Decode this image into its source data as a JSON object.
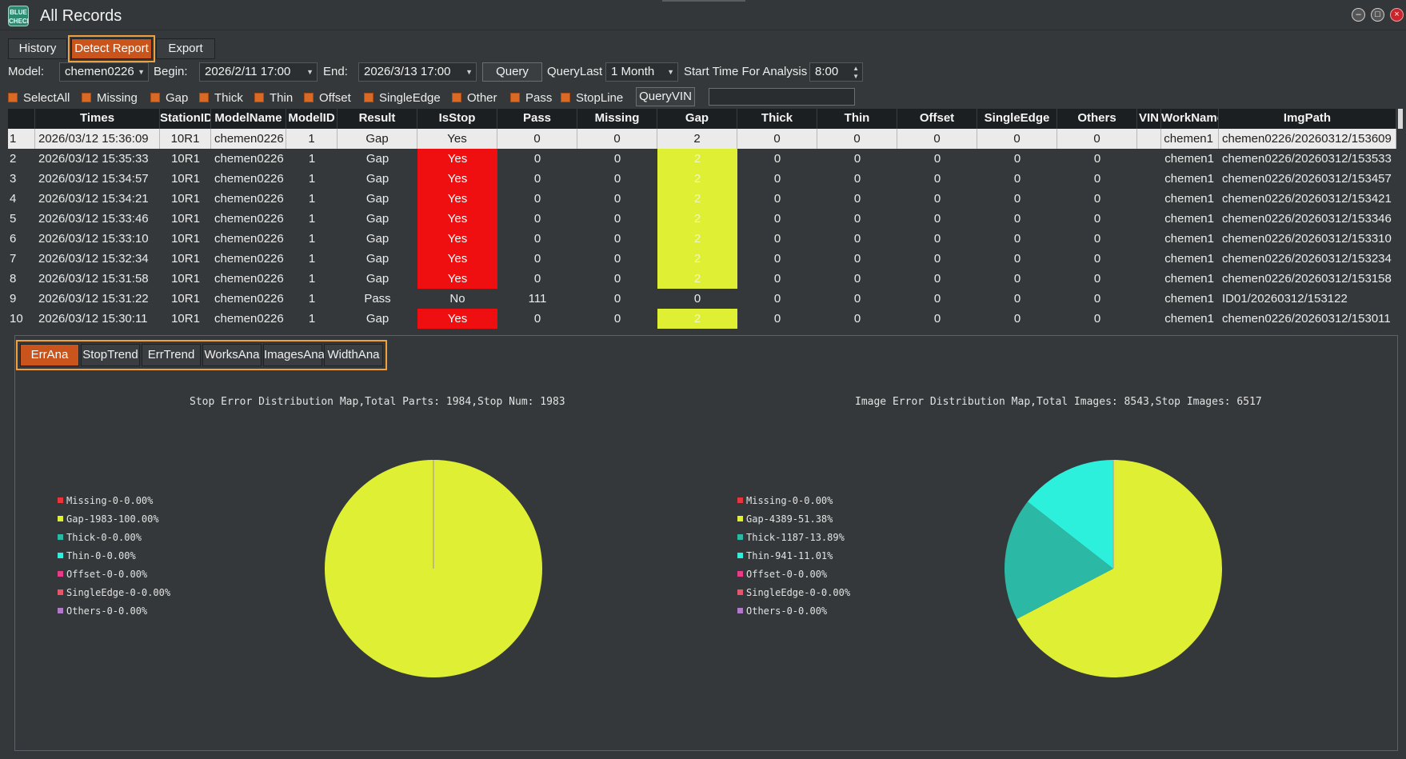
{
  "window": {
    "title": "All Records",
    "logo_text": "BLUE CHECK"
  },
  "main_tabs": [
    "History",
    "Detect Report",
    "Export"
  ],
  "filters": {
    "model_label": "Model:",
    "model_value": "chemen0226",
    "begin_label": "Begin:",
    "begin_value": "2026/2/11 17:00",
    "end_label": "End:",
    "end_value": "2026/3/13 17:00",
    "query_button": "Query",
    "query_last_label": "QueryLast",
    "query_last_value": "1 Month",
    "start_time_label": "Start Time For Analysis",
    "start_time_value": "8:00"
  },
  "checkboxes": [
    "SelectAll",
    "Missing",
    "Gap",
    "Thick",
    "Thin",
    "Offset",
    "SingleEdge",
    "Other",
    "Pass",
    "StopLine"
  ],
  "query_vin_button": "QueryVIN",
  "query_vin_value": "",
  "table": {
    "columns": [
      "",
      "Times",
      "StationID",
      "ModelName",
      "ModelID",
      "Result",
      "IsStop",
      "Pass",
      "Missing",
      "Gap",
      "Thick",
      "Thin",
      "Offset",
      "SingleEdge",
      "Others",
      "VIN",
      "WorkName",
      "ImgPath"
    ],
    "rows": [
      [
        "1",
        "2026/03/12 15:36:09",
        "10R1",
        "chemen0226",
        "1",
        "Gap",
        "Yes",
        "0",
        "0",
        "2",
        "0",
        "0",
        "0",
        "0",
        "0",
        "",
        "chemen1",
        "chemen0226/20260312/153609"
      ],
      [
        "2",
        "2026/03/12 15:35:33",
        "10R1",
        "chemen0226",
        "1",
        "Gap",
        "Yes",
        "0",
        "0",
        "2",
        "0",
        "0",
        "0",
        "0",
        "0",
        "",
        "chemen1",
        "chemen0226/20260312/153533"
      ],
      [
        "3",
        "2026/03/12 15:34:57",
        "10R1",
        "chemen0226",
        "1",
        "Gap",
        "Yes",
        "0",
        "0",
        "2",
        "0",
        "0",
        "0",
        "0",
        "0",
        "",
        "chemen1",
        "chemen0226/20260312/153457"
      ],
      [
        "4",
        "2026/03/12 15:34:21",
        "10R1",
        "chemen0226",
        "1",
        "Gap",
        "Yes",
        "0",
        "0",
        "2",
        "0",
        "0",
        "0",
        "0",
        "0",
        "",
        "chemen1",
        "chemen0226/20260312/153421"
      ],
      [
        "5",
        "2026/03/12 15:33:46",
        "10R1",
        "chemen0226",
        "1",
        "Gap",
        "Yes",
        "0",
        "0",
        "2",
        "0",
        "0",
        "0",
        "0",
        "0",
        "",
        "chemen1",
        "chemen0226/20260312/153346"
      ],
      [
        "6",
        "2026/03/12 15:33:10",
        "10R1",
        "chemen0226",
        "1",
        "Gap",
        "Yes",
        "0",
        "0",
        "2",
        "0",
        "0",
        "0",
        "0",
        "0",
        "",
        "chemen1",
        "chemen0226/20260312/153310"
      ],
      [
        "7",
        "2026/03/12 15:32:34",
        "10R1",
        "chemen0226",
        "1",
        "Gap",
        "Yes",
        "0",
        "0",
        "2",
        "0",
        "0",
        "0",
        "0",
        "0",
        "",
        "chemen1",
        "chemen0226/20260312/153234"
      ],
      [
        "8",
        "2026/03/12 15:31:58",
        "10R1",
        "chemen0226",
        "1",
        "Gap",
        "Yes",
        "0",
        "0",
        "2",
        "0",
        "0",
        "0",
        "0",
        "0",
        "",
        "chemen1",
        "chemen0226/20260312/153158"
      ],
      [
        "9",
        "2026/03/12 15:31:22",
        "10R1",
        "chemen0226",
        "1",
        "Pass",
        "No",
        "111",
        "0",
        "0",
        "0",
        "0",
        "0",
        "0",
        "0",
        "",
        "chemen1",
        "ID01/20260312/153122"
      ],
      [
        "10",
        "2026/03/12 15:30:11",
        "10R1",
        "chemen0226",
        "1",
        "Gap",
        "Yes",
        "0",
        "0",
        "2",
        "0",
        "0",
        "0",
        "0",
        "0",
        "",
        "chemen1",
        "chemen0226/20260312/153011"
      ]
    ]
  },
  "analysis_tabs": [
    "ErrAna",
    "StopTrend",
    "ErrTrend",
    "WorksAna",
    "ImagesAna",
    "WidthAna"
  ],
  "colors": {
    "missing": "#e8353c",
    "gap": "#dff034",
    "thick": "#2bb8a4",
    "thin": "#2df0dc",
    "offset": "#e83c86",
    "singleedge": "#e8556a",
    "others": "#b07ac8",
    "stop_yes": "#ef0f10",
    "accent": "#c9551c",
    "highlight": "#f2a03a"
  },
  "chart_data": [
    {
      "type": "pie",
      "title": "Stop Error Distribution Map,Total Parts: 1984,Stop Num: 1983",
      "legend_position": "left",
      "categories": [
        "Missing",
        "Gap",
        "Thick",
        "Thin",
        "Offset",
        "SingleEdge",
        "Others"
      ],
      "values": [
        0,
        1983,
        0,
        0,
        0,
        0,
        0
      ],
      "legend_labels": [
        "Missing-0-0.00%",
        "Gap-1983-100.00%",
        "Thick-0-0.00%",
        "Thin-0-0.00%",
        "Offset-0-0.00%",
        "SingleEdge-0-0.00%",
        "Others-0-0.00%"
      ]
    },
    {
      "type": "pie",
      "title": "Image Error Distribution Map,Total Images: 8543,Stop Images: 6517",
      "legend_position": "left",
      "categories": [
        "Missing",
        "Gap",
        "Thick",
        "Thin",
        "Offset",
        "SingleEdge",
        "Others"
      ],
      "values": [
        0,
        4389,
        1187,
        941,
        0,
        0,
        0
      ],
      "legend_labels": [
        "Missing-0-0.00%",
        "Gap-4389-51.38%",
        "Thick-1187-13.89%",
        "Thin-941-11.01%",
        "Offset-0-0.00%",
        "SingleEdge-0-0.00%",
        "Others-0-0.00%"
      ]
    }
  ]
}
